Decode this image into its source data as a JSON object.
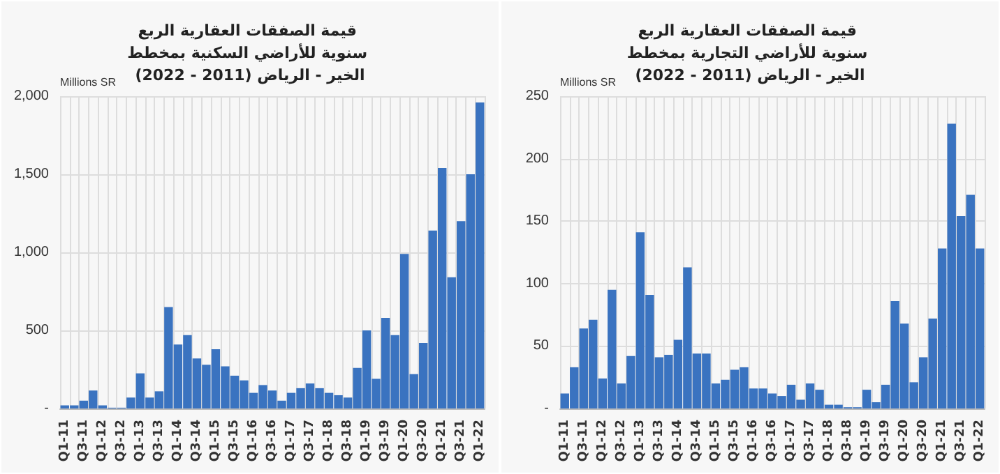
{
  "chart_data": [
    {
      "type": "bar",
      "title": "قيمة الصفقات العقارية الربع سنوية للأراضي السكنية بمخطط الخير - الرياض (2011 - 2022)",
      "ylabel": "Millions SR",
      "categories": [
        "Q1-11",
        null,
        "Q3-11",
        null,
        "Q1-12",
        null,
        "Q3-12",
        null,
        "Q1-13",
        null,
        "Q3-13",
        null,
        "Q1-14",
        null,
        "Q3-14",
        null,
        "Q1-15",
        null,
        "Q3-15",
        null,
        "Q1-16",
        null,
        "Q3-16",
        null,
        "Q1-17",
        null,
        "Q3-17",
        null,
        "Q1-18",
        null,
        "Q3-18",
        null,
        "Q1-19",
        null,
        "Q3-19",
        null,
        "Q1-20",
        null,
        "Q3-20",
        null,
        "Q1-21",
        null,
        "Q3-21",
        null,
        "Q1-22"
      ],
      "values": [
        20,
        20,
        50,
        115,
        20,
        5,
        5,
        70,
        225,
        70,
        110,
        650,
        410,
        470,
        320,
        280,
        380,
        270,
        210,
        180,
        100,
        150,
        115,
        50,
        100,
        130,
        160,
        130,
        100,
        85,
        70,
        260,
        500,
        190,
        580,
        470,
        990,
        220,
        420,
        1140,
        1540,
        840,
        1200,
        1500,
        1960
      ],
      "color": "#3a73c0",
      "ylim": [
        0,
        2000
      ],
      "yticks": [
        {
          "value": 0,
          "label": "-"
        },
        {
          "value": 500,
          "label": "500"
        },
        {
          "value": 1000,
          "label": "1,000"
        },
        {
          "value": 1500,
          "label": "1,500"
        },
        {
          "value": 2000,
          "label": "2,000"
        }
      ],
      "grid": true
    },
    {
      "type": "bar",
      "title": "قيمة الصفقات العقارية الربع سنوية للأراضي التجارية بمخطط الخير - الرياض (2011 - 2022)",
      "ylabel": "Millions SR",
      "categories": [
        "Q1-11",
        null,
        "Q3-11",
        null,
        "Q1-12",
        null,
        "Q3-12",
        null,
        "Q1-13",
        null,
        "Q3-13",
        null,
        "Q1-14",
        null,
        "Q3-14",
        null,
        "Q1-15",
        null,
        "Q3-15",
        null,
        "Q1-16",
        null,
        "Q3-16",
        null,
        "Q1-17",
        null,
        "Q3-17",
        null,
        "Q1-18",
        null,
        "Q3-18",
        null,
        "Q1-19",
        null,
        "Q3-19",
        null,
        "Q1-20",
        null,
        "Q3-20",
        null,
        "Q1-21",
        null,
        "Q3-21",
        null,
        "Q1-22"
      ],
      "values": [
        12,
        33,
        64,
        71,
        24,
        95,
        20,
        42,
        141,
        91,
        41,
        43,
        55,
        113,
        44,
        44,
        20,
        23,
        31,
        33,
        16,
        16,
        12,
        10,
        19,
        7,
        20,
        15,
        3,
        3,
        1,
        1,
        15,
        5,
        19,
        86,
        68,
        21,
        41,
        72,
        128,
        228,
        154,
        171,
        128
      ],
      "color": "#3a73c0",
      "ylim": [
        0,
        250
      ],
      "yticks": [
        {
          "value": 0,
          "label": "-"
        },
        50,
        100,
        150,
        200,
        250
      ],
      "grid": true
    }
  ]
}
